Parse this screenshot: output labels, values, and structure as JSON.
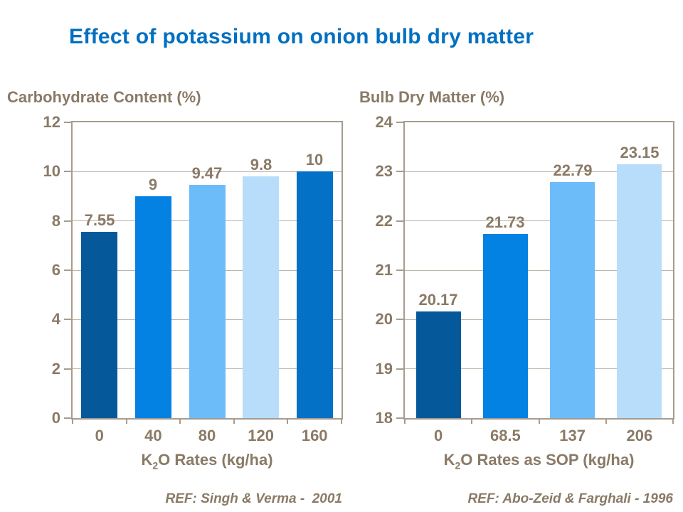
{
  "slide": {
    "title": "Effect of potassium on onion bulb dry matter"
  },
  "colors": {
    "title_blue": "#0070C0",
    "text_brown": "#8A7A66",
    "gridline": "#BDB4A9",
    "axis_border": "#A69C8F",
    "background": "#FFFFFF"
  },
  "chart_data": [
    {
      "type": "bar",
      "title": "Carbohydrate Content (%)",
      "xlabel": {
        "prefix": "K",
        "sub": "2",
        "rest": "O Rates (kg/ha)"
      },
      "ylabel": "",
      "ref": "REF: Singh & Verma -  2001",
      "categories": [
        "0",
        "40",
        "80",
        "120",
        "160"
      ],
      "values": [
        7.55,
        9,
        9.47,
        9.8,
        10
      ],
      "value_labels": [
        "7.55",
        "9",
        "9.47",
        "9.8",
        "10"
      ],
      "bar_colors": [
        "#05599B",
        "#0482E4",
        "#6BBCF9",
        "#B8DDFA",
        "#0271C6"
      ],
      "ylim": [
        0,
        12
      ],
      "yticks": [
        0,
        2,
        4,
        6,
        8,
        10,
        12
      ],
      "grid": true,
      "legend": false
    },
    {
      "type": "bar",
      "title": "Bulb Dry Matter (%)",
      "xlabel": {
        "prefix": "K",
        "sub": "2",
        "rest": "O Rates as SOP (kg/ha)"
      },
      "ylabel": "",
      "ref": "REF: Abo-Zeid & Farghali - 1996",
      "categories": [
        "0",
        "68.5",
        "137",
        "206"
      ],
      "values": [
        20.17,
        21.73,
        22.79,
        23.15
      ],
      "value_labels": [
        "20.17",
        "21.73",
        "22.79",
        "23.15"
      ],
      "bar_colors": [
        "#05599B",
        "#0482E4",
        "#6BBCF9",
        "#B8DDFA"
      ],
      "ylim": [
        18,
        24
      ],
      "yticks": [
        18,
        19,
        20,
        21,
        22,
        23,
        24
      ],
      "grid": true,
      "legend": false
    }
  ]
}
